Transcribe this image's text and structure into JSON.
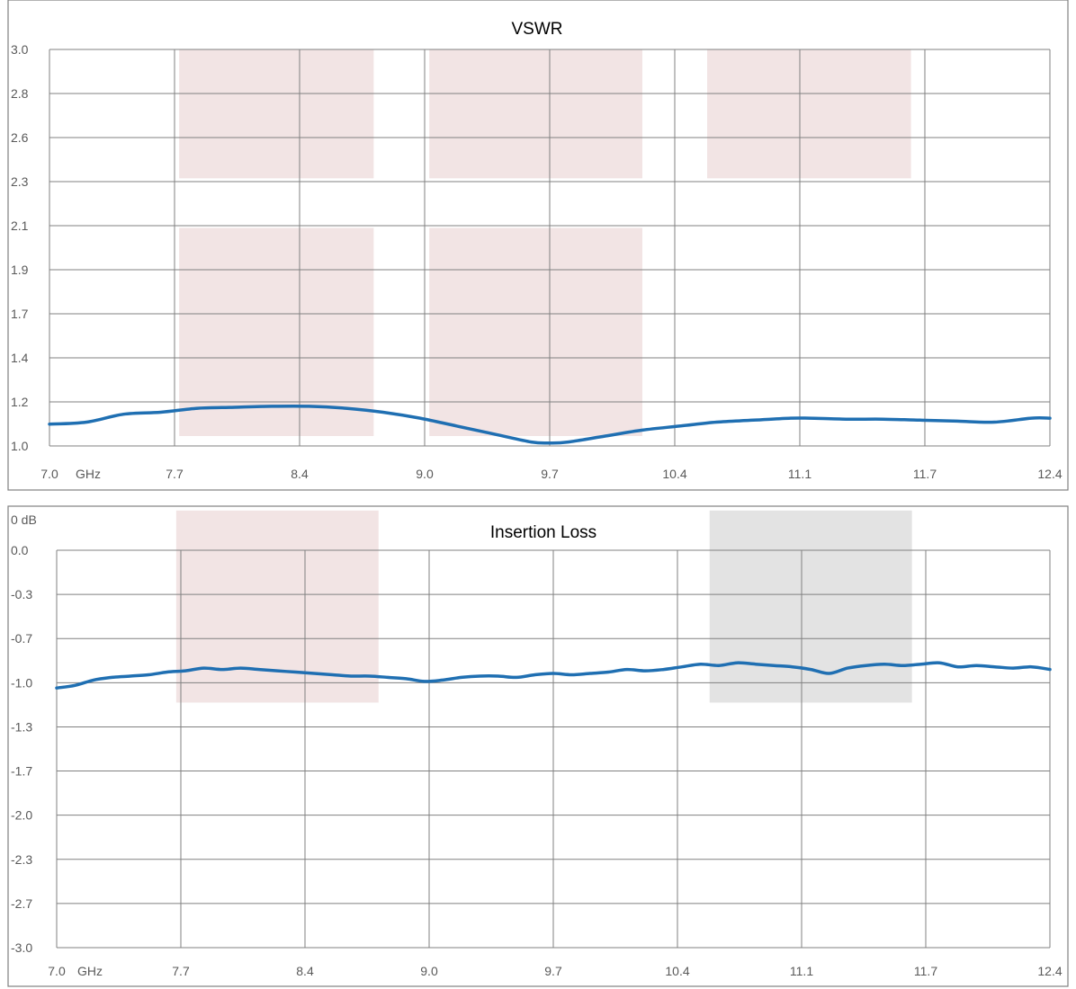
{
  "chart_data": [
    {
      "type": "line",
      "title": "VSWR",
      "xunit": "GHz",
      "x_ticks": [
        "7.0",
        "7.7",
        "8.4",
        "9.0",
        "9.7",
        "10.4",
        "11.1",
        "11.7",
        "12.4"
      ],
      "y_ticks": [
        "3.0",
        "2.8",
        "2.6",
        "2.3",
        "2.1",
        "1.9",
        "1.7",
        "1.4",
        "1.2",
        "1.0"
      ],
      "xlim": [
        7.0,
        12.4
      ],
      "ylim": [
        1.0,
        3.0
      ],
      "grid": true,
      "colors": {
        "line": "#1f6fb2",
        "band": "#f2e4e4",
        "grid": "#808080",
        "frame": "#808080"
      },
      "series": [
        {
          "name": "",
          "x": [
            7.0,
            7.2,
            7.4,
            7.6,
            7.8,
            8.0,
            8.2,
            8.4,
            8.6,
            8.8,
            9.0,
            9.2,
            9.4,
            9.6,
            9.7,
            9.8,
            10.0,
            10.2,
            10.4,
            10.6,
            10.8,
            11.0,
            11.1,
            11.3,
            11.5,
            11.7,
            11.9,
            12.1,
            12.3,
            12.4
          ],
          "y": [
            1.11,
            1.12,
            1.16,
            1.17,
            1.19,
            1.195,
            1.2,
            1.2,
            1.19,
            1.17,
            1.14,
            1.1,
            1.06,
            1.02,
            1.015,
            1.02,
            1.05,
            1.08,
            1.1,
            1.12,
            1.13,
            1.14,
            1.14,
            1.135,
            1.135,
            1.13,
            1.125,
            1.12,
            1.14,
            1.14
          ]
        }
      ],
      "bands": [
        {
          "x0": 7.7,
          "x1": 8.75,
          "y0": 2.35,
          "y1": 3.0
        },
        {
          "x0": 9.05,
          "x1": 10.2,
          "y0": 2.35,
          "y1": 3.0
        },
        {
          "x0": 10.55,
          "x1": 11.65,
          "y0": 2.35,
          "y1": 3.0
        },
        {
          "x0": 7.7,
          "x1": 8.75,
          "y0": 1.05,
          "y1": 2.1
        },
        {
          "x0": 9.05,
          "x1": 10.2,
          "y0": 1.05,
          "y1": 2.1
        }
      ]
    },
    {
      "type": "line",
      "title": "Insertion Loss",
      "yunit": "0 dB",
      "xunit": "GHz",
      "x_ticks": [
        "7.0",
        "7.7",
        "8.4",
        "9.0",
        "9.7",
        "10.4",
        "11.1",
        "11.7",
        "12.4"
      ],
      "y_ticks": [
        "0.0",
        "-0.3",
        "-0.7",
        "-1.0",
        "-1.3",
        "-1.7",
        "-2.0",
        "-2.3",
        "-2.7",
        "-3.0"
      ],
      "xlim": [
        7.0,
        12.4
      ],
      "ylim": [
        -3.0,
        0.0
      ],
      "grid": true,
      "colors": {
        "line": "#1f6fb2",
        "band": "#f2e4e4",
        "band_gray": "#e3e3e3",
        "grid": "#808080",
        "frame": "#808080"
      },
      "series": [
        {
          "name": "",
          "x": [
            7.0,
            7.1,
            7.2,
            7.3,
            7.4,
            7.5,
            7.6,
            7.7,
            7.8,
            7.9,
            8.0,
            8.1,
            8.2,
            8.3,
            8.4,
            8.5,
            8.6,
            8.7,
            8.8,
            8.9,
            9.0,
            9.1,
            9.2,
            9.3,
            9.4,
            9.5,
            9.6,
            9.7,
            9.8,
            9.9,
            10.0,
            10.1,
            10.2,
            10.3,
            10.4,
            10.5,
            10.6,
            10.7,
            10.8,
            10.9,
            11.0,
            11.1,
            11.2,
            11.3,
            11.4,
            11.5,
            11.6,
            11.7,
            11.8,
            11.9,
            12.0,
            12.1,
            12.2,
            12.3,
            12.4
          ],
          "y": [
            -1.04,
            -1.02,
            -0.98,
            -0.96,
            -0.95,
            -0.94,
            -0.92,
            -0.91,
            -0.89,
            -0.9,
            -0.89,
            -0.9,
            -0.91,
            -0.92,
            -0.93,
            -0.94,
            -0.95,
            -0.95,
            -0.96,
            -0.97,
            -0.99,
            -0.98,
            -0.96,
            -0.95,
            -0.95,
            -0.96,
            -0.94,
            -0.93,
            -0.94,
            -0.93,
            -0.92,
            -0.9,
            -0.91,
            -0.9,
            -0.88,
            -0.86,
            -0.87,
            -0.85,
            -0.86,
            -0.87,
            -0.88,
            -0.9,
            -0.93,
            -0.89,
            -0.87,
            -0.86,
            -0.87,
            -0.86,
            -0.85,
            -0.88,
            -0.87,
            -0.88,
            -0.89,
            -0.88,
            -0.9
          ]
        }
      ],
      "bands": [
        {
          "x0": 7.65,
          "x1": 8.75,
          "y0": -1.15,
          "y1": 0.3,
          "tone": "pink"
        },
        {
          "x0": 10.55,
          "x1": 11.65,
          "y0": -1.15,
          "y1": 0.3,
          "tone": "gray"
        }
      ]
    }
  ]
}
